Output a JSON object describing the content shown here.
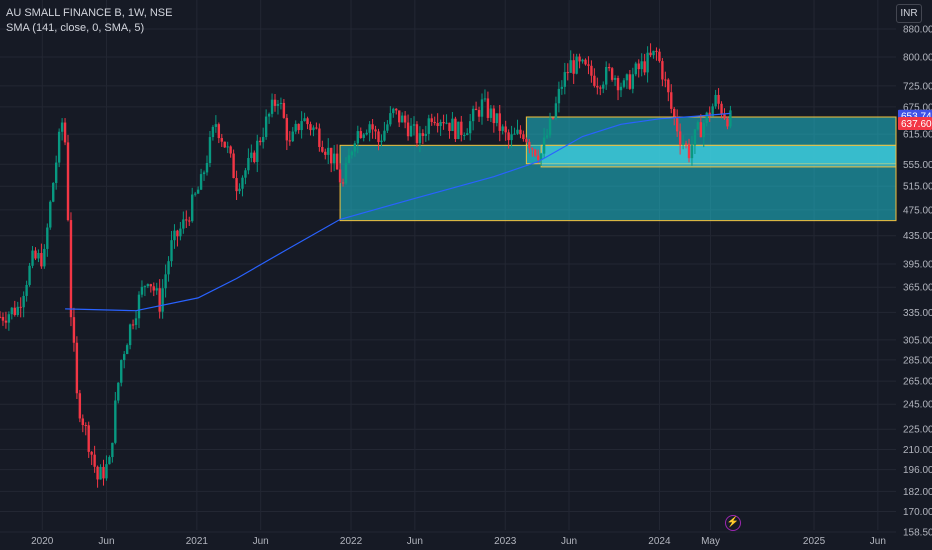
{
  "legend": {
    "symbol": "AU SMALL FINANCE B, 1W, NSE",
    "indicator": "SMA (141, close, 0, SMA, 5)"
  },
  "currency": "INR",
  "chart_data": {
    "type": "candlestick",
    "y_scale": "log",
    "ylim": [
      158.5,
      880
    ],
    "x_range": [
      "2019-09-23",
      "2025-07-14"
    ],
    "y_ticks": [
      "880.00",
      "800.00",
      "725.00",
      "675.00",
      "615.00",
      "555.00",
      "515.00",
      "475.00",
      "435.00",
      "395.00",
      "365.00",
      "335.00",
      "305.00",
      "285.00",
      "265.00",
      "245.00",
      "225.00",
      "210.00",
      "196.00",
      "182.00",
      "170.00",
      "158.50"
    ],
    "x_ticks": [
      {
        "label": "2020",
        "date": "2020-01-01"
      },
      {
        "label": "Jun",
        "date": "2020-06-01"
      },
      {
        "label": "2021",
        "date": "2021-01-01"
      },
      {
        "label": "Jun",
        "date": "2021-06-01"
      },
      {
        "label": "2022",
        "date": "2022-01-01"
      },
      {
        "label": "Jun",
        "date": "2022-06-01"
      },
      {
        "label": "2023",
        "date": "2023-01-01"
      },
      {
        "label": "Jun",
        "date": "2023-06-01"
      },
      {
        "label": "2024",
        "date": "2024-01-01"
      },
      {
        "label": "May",
        "date": "2024-05-01"
      },
      {
        "label": "2025",
        "date": "2025-01-01"
      },
      {
        "label": "Jun",
        "date": "2025-06-01"
      }
    ],
    "price_path": [
      [
        "2019-09-23",
        330
      ],
      [
        "2019-11-04",
        340
      ],
      [
        "2019-12-09",
        400
      ],
      [
        "2020-01-06",
        405
      ],
      [
        "2020-02-17",
        640
      ],
      [
        "2020-02-24",
        600
      ],
      [
        "2020-03-09",
        335
      ],
      [
        "2020-03-23",
        250
      ],
      [
        "2020-05-11",
        190
      ],
      [
        "2020-06-08",
        200
      ],
      [
        "2020-07-06",
        285
      ],
      [
        "2020-08-03",
        330
      ],
      [
        "2020-09-07",
        380
      ],
      [
        "2020-10-05",
        345
      ],
      [
        "2020-11-02",
        420
      ],
      [
        "2020-12-07",
        460
      ],
      [
        "2021-01-11",
        520
      ],
      [
        "2021-02-15",
        640
      ],
      [
        "2021-03-15",
        580
      ],
      [
        "2021-04-05",
        520
      ],
      [
        "2021-05-10",
        560
      ],
      [
        "2021-06-14",
        640
      ],
      [
        "2021-07-12",
        700
      ],
      [
        "2021-08-09",
        590
      ],
      [
        "2021-09-06",
        650
      ],
      [
        "2021-10-11",
        620
      ],
      [
        "2021-11-15",
        570
      ],
      [
        "2021-12-13",
        515
      ],
      [
        "2022-01-10",
        615
      ],
      [
        "2022-02-14",
        640
      ],
      [
        "2022-03-07",
        600
      ],
      [
        "2022-04-11",
        660
      ],
      [
        "2022-05-09",
        640
      ],
      [
        "2022-06-13",
        600
      ],
      [
        "2022-07-11",
        660
      ],
      [
        "2022-08-08",
        650
      ],
      [
        "2022-09-12",
        620
      ],
      [
        "2022-10-10",
        640
      ],
      [
        "2022-11-07",
        680
      ],
      [
        "2022-12-05",
        650
      ],
      [
        "2023-01-09",
        600
      ],
      [
        "2023-02-13",
        620
      ],
      [
        "2023-03-06",
        590
      ],
      [
        "2023-03-27",
        575
      ],
      [
        "2023-04-24",
        650
      ],
      [
        "2023-05-15",
        730
      ],
      [
        "2023-06-05",
        780
      ],
      [
        "2023-07-03",
        770
      ],
      [
        "2023-08-07",
        740
      ],
      [
        "2023-09-11",
        760
      ],
      [
        "2023-10-09",
        720
      ],
      [
        "2023-11-06",
        760
      ],
      [
        "2023-12-11",
        795
      ],
      [
        "2023-12-25",
        810
      ],
      [
        "2024-01-08",
        760
      ],
      [
        "2024-01-29",
        670
      ],
      [
        "2024-02-19",
        610
      ],
      [
        "2024-03-11",
        580
      ],
      [
        "2024-04-01",
        620
      ],
      [
        "2024-04-22",
        650
      ],
      [
        "2024-05-13",
        690
      ],
      [
        "2024-06-03",
        660
      ],
      [
        "2024-06-17",
        646
      ]
    ],
    "sma_path": [
      [
        "2020-02-24",
        339
      ],
      [
        "2020-08-10",
        337
      ],
      [
        "2021-01-04",
        352
      ],
      [
        "2021-04-05",
        376
      ],
      [
        "2021-08-02",
        415
      ],
      [
        "2021-12-06",
        460
      ],
      [
        "2022-06-06",
        495
      ],
      [
        "2022-12-05",
        532
      ],
      [
        "2023-03-20",
        560
      ],
      [
        "2023-07-03",
        610
      ],
      [
        "2023-10-02",
        636
      ],
      [
        "2024-01-01",
        648
      ],
      [
        "2024-04-01",
        654
      ],
      [
        "2024-06-17",
        660
      ]
    ],
    "price_labels": [
      {
        "value": 653.74,
        "text": "653.74",
        "color": "#3f51e6"
      },
      {
        "value": 637.6,
        "text": "637.60",
        "color": "#f23645"
      }
    ],
    "zones": [
      {
        "from": "2021-12-06",
        "to": "2025-07-14",
        "top": 592,
        "bottom": 458,
        "fill": "#1fc2d4",
        "border": "#f5c03b"
      },
      {
        "from": "2023-02-20",
        "to": "2025-07-14",
        "top": 652,
        "bottom": 556,
        "fill": "#1fc2d4",
        "border": "#f5c03b"
      },
      {
        "from": "2023-03-27",
        "to": "2025-07-14",
        "top": 592,
        "bottom": 550,
        "fill": "#4fd4e4",
        "border": "#f5c03b"
      }
    ],
    "colors": {
      "up": "#089981",
      "down": "#f23645",
      "sma": "#2962ff",
      "grid": "#232733",
      "background": "#161a25"
    }
  }
}
